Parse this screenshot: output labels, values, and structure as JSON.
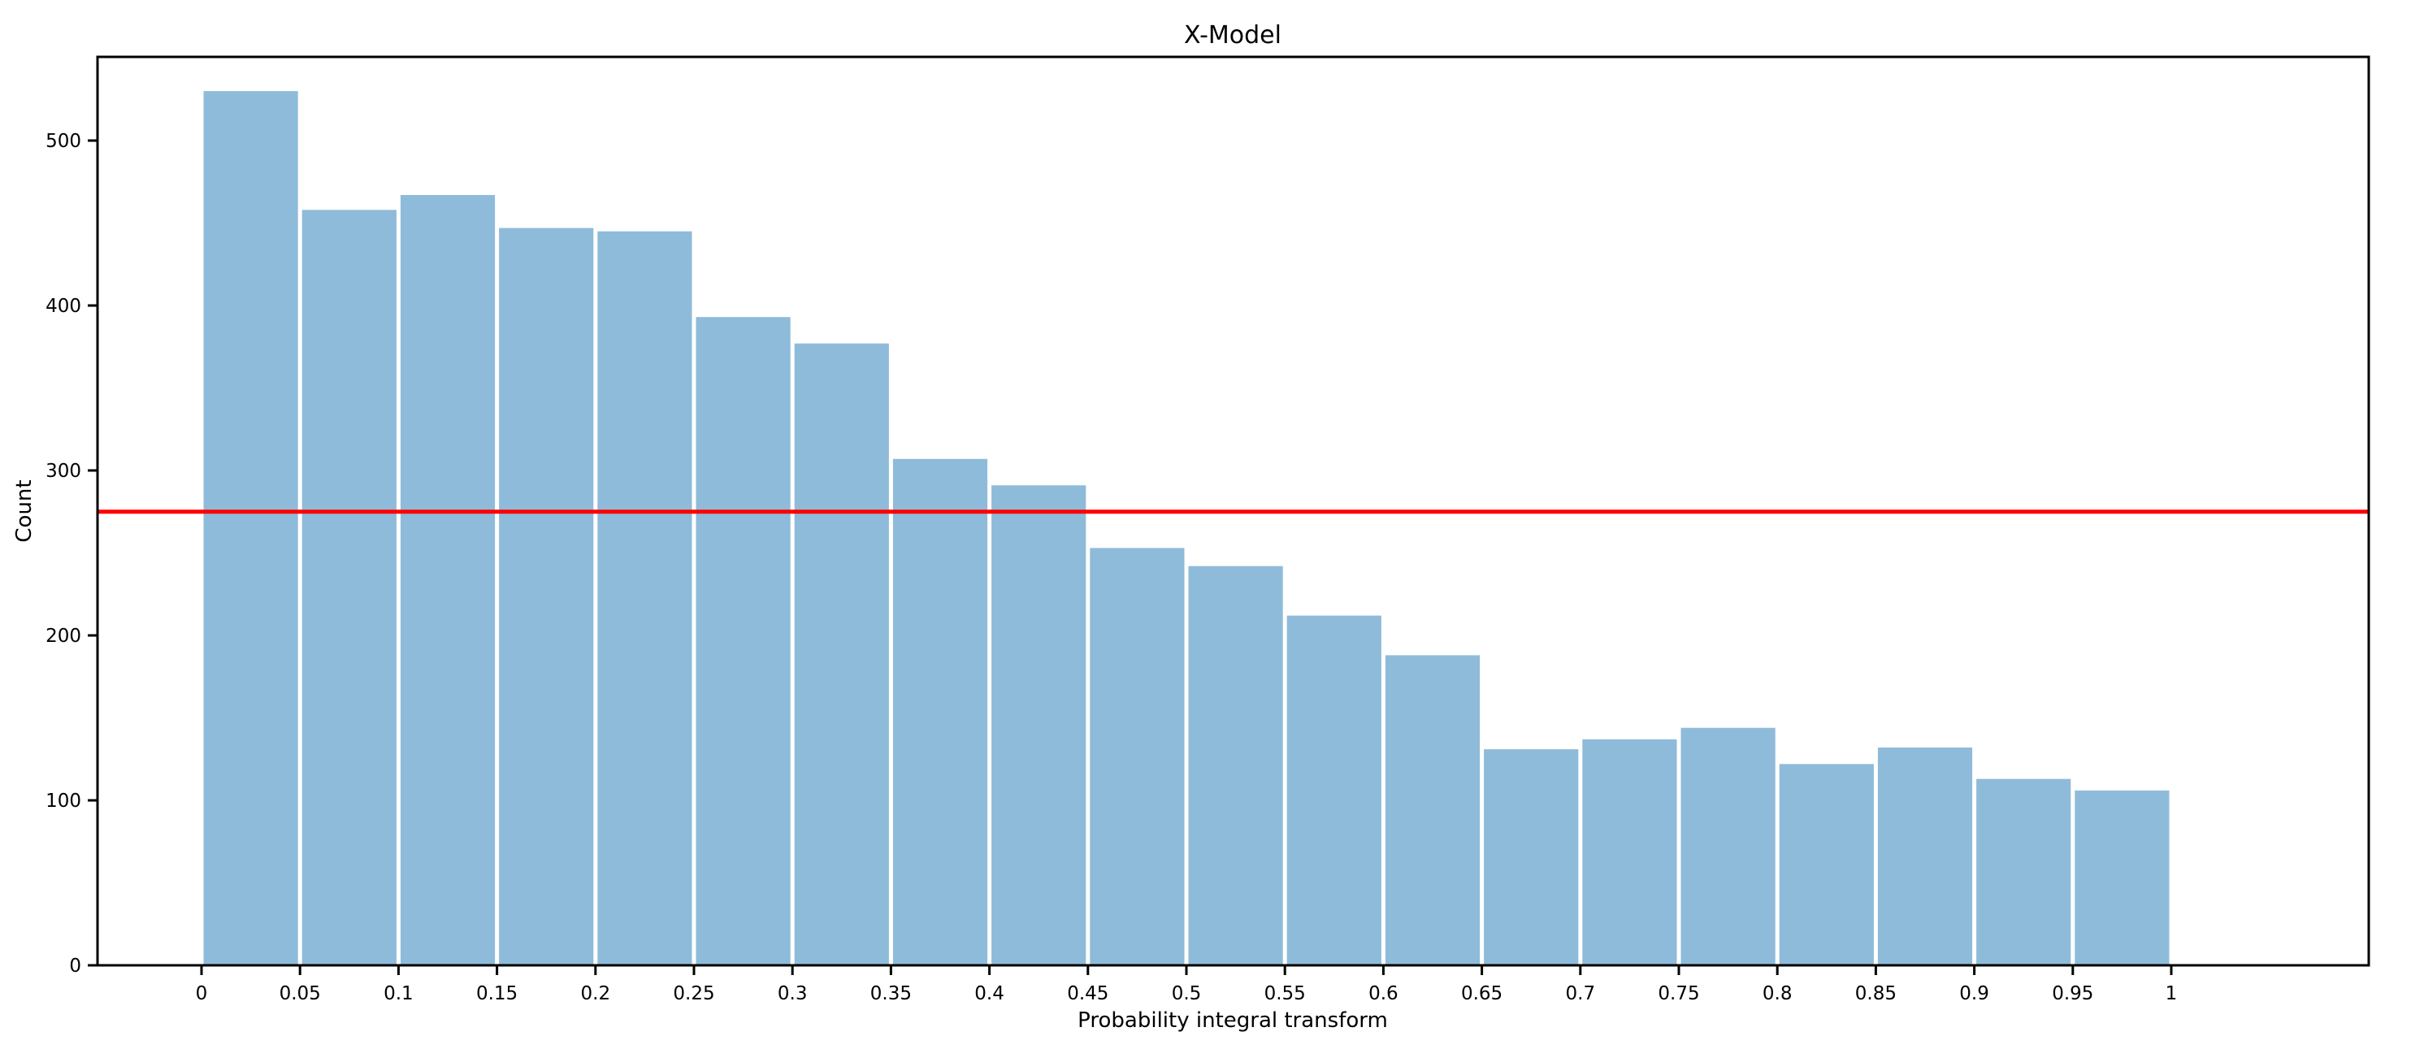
{
  "chart_data": {
    "type": "bar",
    "subtype": "histogram",
    "title": "X-Model",
    "xlabel": "Probability integral transform",
    "ylabel": "Count",
    "bin_start": 0,
    "bin_width": 0.05,
    "bin_edges": [
      0,
      0.05,
      0.1,
      0.15,
      0.2,
      0.25,
      0.3,
      0.35,
      0.4,
      0.45,
      0.5,
      0.55,
      0.6,
      0.65,
      0.7,
      0.75,
      0.8,
      0.85,
      0.9,
      0.95,
      1
    ],
    "counts": [
      530,
      458,
      467,
      447,
      445,
      393,
      377,
      307,
      291,
      253,
      242,
      212,
      188,
      131,
      137,
      144,
      122,
      132,
      113,
      106
    ],
    "reference_line": {
      "orientation": "horizontal",
      "value": 275,
      "color": "#ff0000"
    },
    "bar_color": "#8fbbda",
    "bar_edge_color": "#ffffff",
    "spine_color": "#000000",
    "xtick_labels": [
      "0",
      "0.05",
      "0.1",
      "0.15",
      "0.2",
      "0.25",
      "0.3",
      "0.35",
      "0.4",
      "0.45",
      "0.5",
      "0.55",
      "0.6",
      "0.65",
      "0.7",
      "0.75",
      "0.8",
      "0.85",
      "0.9",
      "0.95",
      "1"
    ],
    "xtick_values": [
      0,
      0.05,
      0.1,
      0.15,
      0.2,
      0.25,
      0.3,
      0.35,
      0.4,
      0.45,
      0.5,
      0.55,
      0.6,
      0.65,
      0.7,
      0.75,
      0.8,
      0.85,
      0.9,
      0.95,
      1
    ],
    "ytick_labels": [
      "0",
      "100",
      "200",
      "300",
      "400",
      "500"
    ],
    "ytick_values": [
      0,
      100,
      200,
      300,
      400,
      500
    ],
    "xlim": [
      -0.0528,
      1.1002
    ],
    "ylim": [
      0,
      550.5
    ],
    "grid": false,
    "legend": null
  }
}
